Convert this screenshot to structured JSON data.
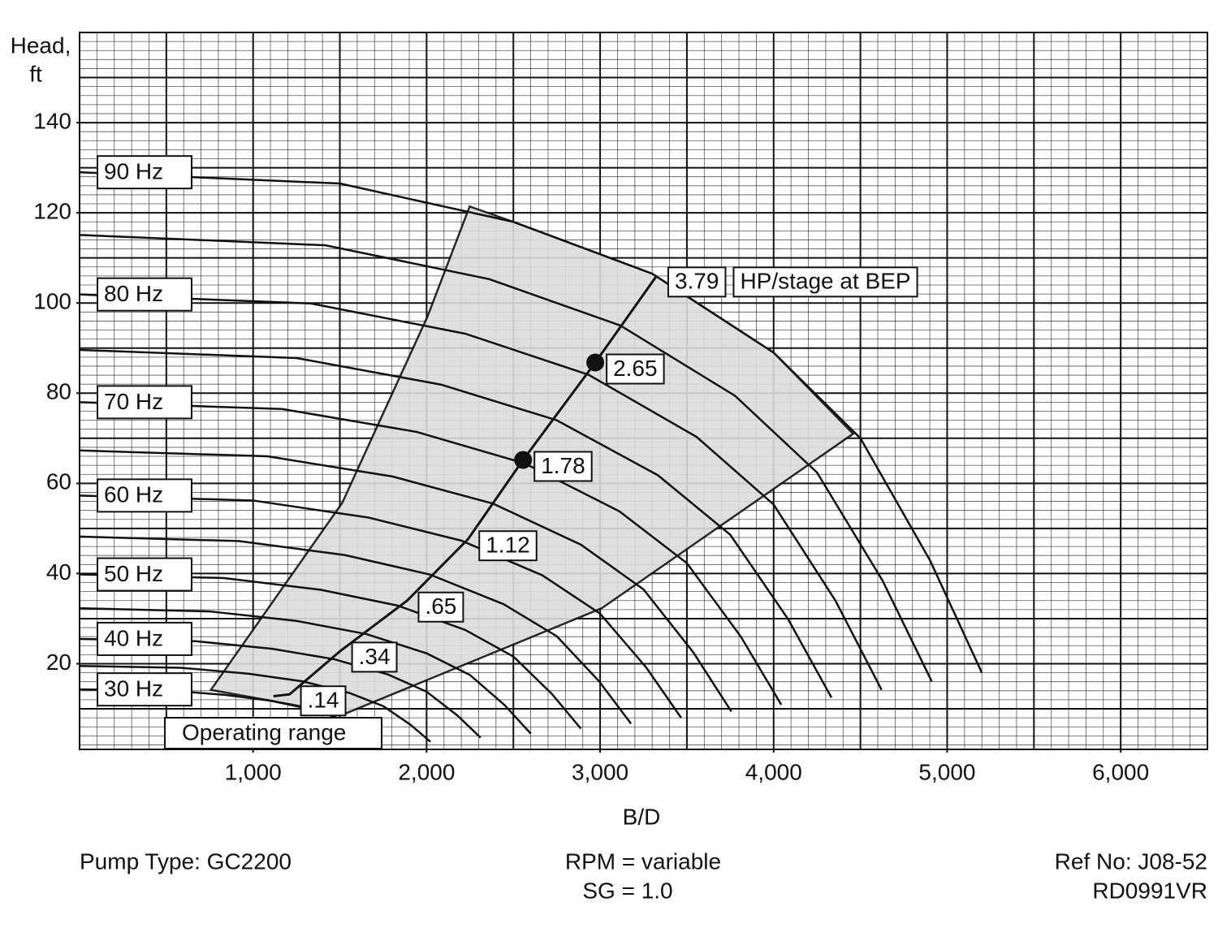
{
  "chart_data": {
    "type": "line",
    "y_label": [
      "Head,",
      "ft"
    ],
    "x_label": "B/D",
    "xlim": [
      0,
      6500
    ],
    "ylim": [
      1,
      160
    ],
    "xticks": [
      {
        "value": 1000,
        "label": "1,000"
      },
      {
        "value": 2000,
        "label": "2,000"
      },
      {
        "value": 3000,
        "label": "3,000"
      },
      {
        "value": 4000,
        "label": "4,000"
      },
      {
        "value": 5000,
        "label": "5,000"
      },
      {
        "value": 6000,
        "label": "6,000"
      }
    ],
    "yticks": [
      20,
      40,
      60,
      80,
      100,
      120,
      140
    ],
    "grid": {
      "major_x_step": 500,
      "minor_x_step": 100,
      "major_y_step": 10,
      "minor_y_step": 2
    },
    "line_color": "#111111",
    "shade_color": "#dcdcdc",
    "series": [
      {
        "name": "90 Hz",
        "x": [
          0,
          1500,
          2500,
          3300,
          4000,
          4500,
          4900,
          5200
        ],
        "values": [
          129,
          126.5,
          118,
          106.5,
          89,
          70,
          43,
          18
        ]
      },
      {
        "x": [
          0,
          1417,
          2361,
          3117,
          3778,
          4250,
          4628,
          4911
        ],
        "values": [
          115.1,
          112.8,
          105.3,
          95,
          79.4,
          62.4,
          38.4,
          16.1
        ]
      },
      {
        "name": "80 Hz",
        "x": [
          0,
          1333,
          2222,
          2933,
          3556,
          4000,
          4356,
          4622
        ],
        "values": [
          101.9,
          99.9,
          93.2,
          84.1,
          70.3,
          55.3,
          34,
          14.2
        ]
      },
      {
        "x": [
          0,
          1250,
          2083,
          2750,
          3333,
          3750,
          4083,
          4333
        ],
        "values": [
          89.6,
          87.8,
          81.9,
          74,
          61.8,
          48.6,
          29.9,
          12.5
        ]
      },
      {
        "name": "70 Hz",
        "x": [
          0,
          1167,
          1944,
          2567,
          3111,
          3500,
          3811,
          4044
        ],
        "values": [
          78,
          76.5,
          71.4,
          64.4,
          53.8,
          42.3,
          26,
          10.9
        ]
      },
      {
        "x": [
          0,
          1083,
          1806,
          2383,
          2889,
          3250,
          3539,
          3756
        ],
        "values": [
          67.3,
          66,
          61.5,
          55.5,
          46.4,
          36.5,
          22.4,
          9.4
        ]
      },
      {
        "name": "60 Hz",
        "x": [
          0,
          1000,
          1667,
          2200,
          2667,
          3000,
          3267,
          3467
        ],
        "values": [
          57.3,
          56.2,
          52.4,
          47.3,
          39.6,
          31.1,
          19.1,
          8
        ]
      },
      {
        "x": [
          0,
          917,
          1528,
          2017,
          2444,
          2750,
          2994,
          3178
        ],
        "values": [
          48.2,
          47.2,
          44.1,
          39.8,
          33.2,
          26.1,
          16.1,
          6.7
        ]
      },
      {
        "name": "50 Hz",
        "x": [
          0,
          833,
          1389,
          1833,
          2222,
          2500,
          2722,
          2889
        ],
        "values": [
          39.8,
          39,
          36.4,
          32.9,
          27.5,
          21.6,
          13.3,
          5.6
        ]
      },
      {
        "x": [
          0,
          750,
          1250,
          1650,
          2000,
          2250,
          2450,
          2600
        ],
        "values": [
          32.3,
          31.6,
          29.5,
          26.6,
          22.3,
          17.5,
          10.8,
          4.5
        ]
      },
      {
        "name": "40 Hz",
        "x": [
          0,
          667,
          1111,
          1467,
          1778,
          2000,
          2178,
          2311
        ],
        "values": [
          25.5,
          25,
          23.3,
          21,
          17.6,
          13.8,
          8.5,
          3.6
        ]
      },
      {
        "x": [
          0,
          583,
          972,
          1283,
          1556,
          1750,
          1906,
          2022
        ],
        "values": [
          19.5,
          19.1,
          17.8,
          16.1,
          13.5,
          10.6,
          6.5,
          2.7
        ]
      },
      {
        "name": "30 Hz",
        "x": [
          0,
          500,
          833,
          1100,
          1333,
          1500,
          1633,
          1733
        ],
        "values": [
          14.3,
          14.1,
          13.1,
          11.8,
          9.9,
          7.8,
          4.8,
          2
        ]
      }
    ],
    "operating_range": {
      "label": "Operating range",
      "x": [
        757,
        1514,
        2005,
        2248,
        2500,
        3300,
        4000,
        4458,
        3009,
        1523,
        1100
      ],
      "y": [
        14.2,
        55.7,
        97,
        121.4,
        118,
        106.5,
        89,
        71,
        32.3,
        8.8,
        11.8
      ]
    },
    "bep": {
      "label": "HP/stage at BEP",
      "x": [
        1117,
        1210,
        1505,
        1888,
        2238,
        2556,
        2972,
        3327
      ],
      "y": [
        12.8,
        13.2,
        22.9,
        34,
        47.6,
        65.2,
        86.8,
        106.1
      ],
      "labels": [
        null,
        ".14",
        ".34",
        ".65",
        "1.12",
        "1.78",
        "2.65",
        "3.79"
      ],
      "dots": [
        5,
        6
      ]
    },
    "footer": {
      "pump": "Pump Type: GC2200",
      "rpm": "RPM = variable",
      "sg": "SG = 1.0",
      "ref": "Ref No: J08-52",
      "code": "RD0991VR"
    }
  }
}
